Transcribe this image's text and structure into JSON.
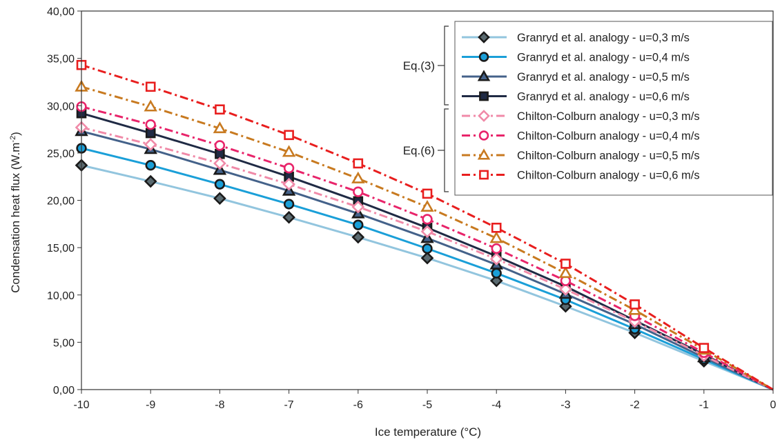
{
  "chart_data": {
    "type": "line",
    "title": "",
    "xlabel": "Ice temperature (°C)",
    "ylabel_main": "Condensation heat flux (W.m",
    "ylabel_sup": "-2",
    "ylabel_close": ")",
    "xlim": [
      -10,
      0
    ],
    "ylim": [
      0,
      40
    ],
    "x_ticks": [
      -10,
      -9,
      -8,
      -7,
      -6,
      -5,
      -4,
      -3,
      -2,
      -1,
      0
    ],
    "x_tick_labels": [
      "-10",
      "-9",
      "-8",
      "-7",
      "-6",
      "-5",
      "-4",
      "-3",
      "-2",
      "-1",
      "0"
    ],
    "y_ticks": [
      0,
      5,
      10,
      15,
      20,
      25,
      30,
      35,
      40
    ],
    "y_tick_labels": [
      "0,00",
      "5,00",
      "10,00",
      "15,00",
      "20,00",
      "25,00",
      "30,00",
      "35,00",
      "40,00"
    ],
    "grid": false,
    "legend_position": "top-right",
    "x": [
      -10,
      -9,
      -8,
      -7,
      -6,
      -5,
      -4,
      -3,
      -2,
      -1,
      0
    ],
    "series": [
      {
        "name": "Granryd et al. analogy - u=0,3 m/s",
        "color": "#92c5de",
        "dash": "solid",
        "marker": "diamond",
        "marker_fill": "#5a6a70",
        "values": [
          23.7,
          22.0,
          20.2,
          18.2,
          16.1,
          13.9,
          11.5,
          8.8,
          6.0,
          3.0,
          0
        ]
      },
      {
        "name": "Granryd et al. analogy - u=0,4 m/s",
        "color": "#1a9fd8",
        "dash": "solid",
        "marker": "circle",
        "marker_fill": "#1a9fd8",
        "values": [
          25.5,
          23.7,
          21.7,
          19.6,
          17.4,
          14.9,
          12.3,
          9.5,
          6.4,
          3.2,
          0
        ]
      },
      {
        "name": "Granryd et al. analogy - u=0,5 m/s",
        "color": "#44628a",
        "dash": "solid",
        "marker": "triangle",
        "marker_fill": "#44628a",
        "values": [
          27.3,
          25.4,
          23.2,
          21.0,
          18.6,
          16.0,
          13.2,
          10.1,
          6.9,
          3.4,
          0
        ]
      },
      {
        "name": "Granryd et al. analogy - u=0,6 m/s",
        "color": "#1f2a44",
        "dash": "solid",
        "marker": "square",
        "marker_fill": "#1f2a44",
        "values": [
          29.2,
          27.1,
          24.9,
          22.5,
          19.9,
          17.1,
          14.1,
          10.9,
          7.3,
          3.7,
          0
        ]
      },
      {
        "name": "Chilton-Colburn analogy - u=0,3 m/s",
        "color": "#f08aa8",
        "dash": "dashdot",
        "marker": "diamond",
        "marker_fill": "#ffffff",
        "values": [
          27.7,
          25.9,
          23.9,
          21.7,
          19.3,
          16.7,
          13.8,
          10.6,
          7.2,
          3.6,
          0
        ]
      },
      {
        "name": "Chilton-Colburn analogy - u=0,4 m/s",
        "color": "#e8246a",
        "dash": "dashdot",
        "marker": "circle",
        "marker_fill": "#ffffff",
        "values": [
          29.9,
          28.0,
          25.8,
          23.4,
          20.9,
          18.0,
          14.9,
          11.5,
          7.8,
          3.9,
          0
        ]
      },
      {
        "name": "Chilton-Colburn analogy - u=0,5 m/s",
        "color": "#c87a20",
        "dash": "dashdot",
        "marker": "triangle",
        "marker_fill": "#ffffff",
        "values": [
          32.0,
          29.9,
          27.6,
          25.1,
          22.3,
          19.3,
          16.0,
          12.3,
          8.4,
          4.2,
          0
        ]
      },
      {
        "name": "Chilton-Colburn analogy - u=0,6 m/s",
        "color": "#e81e1e",
        "dash": "dashdot",
        "marker": "square",
        "marker_fill": "#ffffff",
        "values": [
          34.3,
          32.0,
          29.6,
          26.9,
          23.9,
          20.7,
          17.1,
          13.3,
          9.0,
          4.4,
          0
        ]
      }
    ],
    "annotations": [
      {
        "text": "Eq.(3)",
        "groups_series": [
          0,
          1,
          2,
          3
        ]
      },
      {
        "text": "Eq.(6)",
        "groups_series": [
          4,
          5,
          6,
          7
        ]
      }
    ]
  }
}
